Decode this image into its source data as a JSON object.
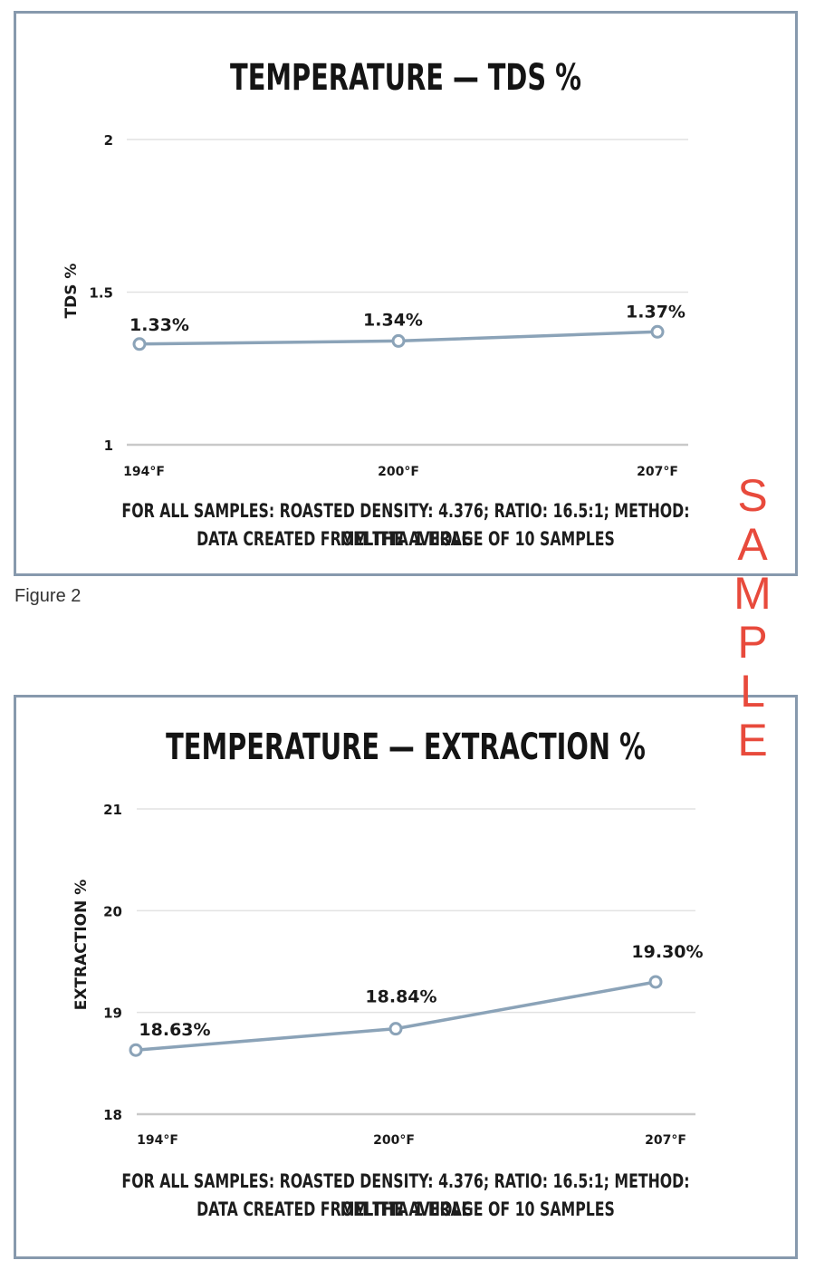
{
  "figure_caption": "Figure 2",
  "watermark_letters": [
    "S",
    "A",
    "M",
    "P",
    "L",
    "E"
  ],
  "chart_data": [
    {
      "type": "line",
      "title": "TEMPERATURE — TDS %",
      "xlabel": "",
      "ylabel": "TDS %",
      "categories": [
        "194°F",
        "200°F",
        "207°F"
      ],
      "series": [
        {
          "values": [
            1.33,
            1.34,
            1.37
          ],
          "labels": [
            "1.33%",
            "1.34%",
            "1.37%"
          ]
        }
      ],
      "ylim": [
        1,
        2
      ],
      "yticks": [
        1,
        1.5,
        2
      ],
      "ytick_labels": [
        "1",
        "1.5",
        "2"
      ],
      "grid": true,
      "line_color": "#8ba3b8",
      "note_lines": [
        "FOR ALL SAMPLES: ROASTED DENSITY: 4.376; RATIO: 16.5:1; METHOD: MELITTA 1 HOLE",
        "DATA CREATED FROM THE AVERAGE OF 10 SAMPLES"
      ]
    },
    {
      "type": "line",
      "title": "TEMPERATURE — EXTRACTION %",
      "xlabel": "",
      "ylabel": "EXTRACTION %",
      "categories": [
        "194°F",
        "200°F",
        "207°F"
      ],
      "series": [
        {
          "values": [
            18.63,
            18.84,
            19.3
          ],
          "labels": [
            "18.63%",
            "18.84%",
            "19.30%"
          ]
        }
      ],
      "ylim": [
        18,
        21
      ],
      "yticks": [
        18,
        19,
        20,
        21
      ],
      "ytick_labels": [
        "18",
        "19",
        "20",
        "21"
      ],
      "grid": true,
      "line_color": "#8ba3b8",
      "note_lines": [
        "FOR ALL SAMPLES: ROASTED DENSITY: 4.376; RATIO: 16.5:1; METHOD: MELITTA 1 HOLE",
        "DATA CREATED FROM THE AVERAGE OF 10 SAMPLES"
      ]
    }
  ]
}
